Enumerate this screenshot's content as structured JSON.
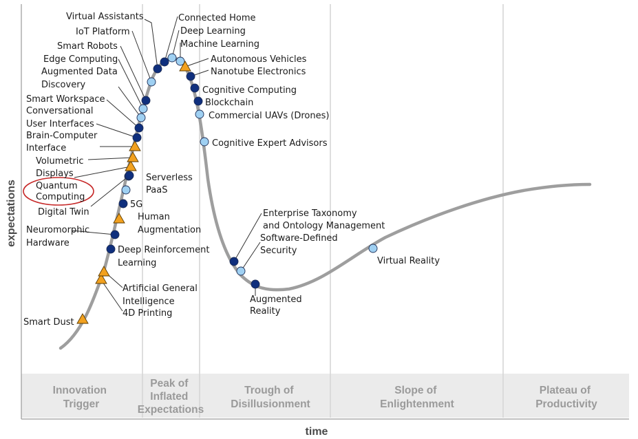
{
  "chart_data": {
    "type": "hype-cycle",
    "xlabel": "time",
    "ylabel": "expectations",
    "legend": "none",
    "grid": false,
    "colors": {
      "curve": "#9e9e9e",
      "phase_band": "#ebebeb",
      "phase_text": "#9a9a9a",
      "divider": "#d4d4d4",
      "dot_dark": "#0f2f7d",
      "dot_light": "#9fd0f2",
      "triangle": "#f2a11f",
      "highlight_ellipse": "#c62828"
    },
    "phases": [
      {
        "lines": [
          "Innovation",
          "Trigger"
        ]
      },
      {
        "lines": [
          "Peak of",
          "Inflated",
          "Expectations"
        ]
      },
      {
        "lines": [
          "Trough of",
          "Disillusionment"
        ]
      },
      {
        "lines": [
          "Slope of",
          "Enlightenment"
        ]
      },
      {
        "lines": [
          "Plateau of",
          "Productivity"
        ]
      }
    ],
    "technologies": [
      {
        "lines": [
          "Smart Dust"
        ],
        "symbol": "triangle",
        "highlighted": false
      },
      {
        "lines": [
          "4D Printing"
        ],
        "symbol": "triangle",
        "highlighted": false
      },
      {
        "lines": [
          "Artificial General",
          "Intelligence"
        ],
        "symbol": "triangle",
        "highlighted": false
      },
      {
        "lines": [
          "Deep Reinforcement",
          "Learning"
        ],
        "symbol": "dark",
        "highlighted": false
      },
      {
        "lines": [
          "Neuromorphic",
          "Hardware"
        ],
        "symbol": "dark",
        "highlighted": false
      },
      {
        "lines": [
          "Human",
          "Augmentation"
        ],
        "symbol": "triangle",
        "highlighted": false
      },
      {
        "lines": [
          "5G"
        ],
        "symbol": "dark",
        "highlighted": false
      },
      {
        "lines": [
          "Digital Twin"
        ],
        "symbol": "dark",
        "highlighted": false
      },
      {
        "lines": [
          "PaaS"
        ],
        "symbol": "light",
        "highlighted": false
      },
      {
        "lines": [
          "Serverless"
        ],
        "symbol": "dark",
        "highlighted": false
      },
      {
        "lines": [
          "Quantum",
          "Computing"
        ],
        "symbol": "triangle",
        "highlighted": true
      },
      {
        "lines": [
          "Volumetric",
          "Displays"
        ],
        "symbol": "triangle",
        "highlighted": false
      },
      {
        "lines": [
          "Brain-Computer",
          "Interface"
        ],
        "symbol": "triangle",
        "highlighted": false
      },
      {
        "lines": [
          "Conversational",
          "User Interfaces"
        ],
        "symbol": "dark",
        "highlighted": false
      },
      {
        "lines": [
          "Smart Workspace"
        ],
        "symbol": "dark",
        "highlighted": false
      },
      {
        "lines": [
          "Augmented Data",
          "Discovery"
        ],
        "symbol": "light",
        "highlighted": false
      },
      {
        "lines": [
          "Edge Computing"
        ],
        "symbol": "light",
        "highlighted": false
      },
      {
        "lines": [
          "Smart Robots"
        ],
        "symbol": "dark",
        "highlighted": false
      },
      {
        "lines": [
          "IoT Platform"
        ],
        "symbol": "light",
        "highlighted": false
      },
      {
        "lines": [
          "Virtual Assistants"
        ],
        "symbol": "dark",
        "highlighted": false
      },
      {
        "lines": [
          "Connected Home"
        ],
        "symbol": "dark",
        "highlighted": false
      },
      {
        "lines": [
          "Deep Learning"
        ],
        "symbol": "light",
        "highlighted": false
      },
      {
        "lines": [
          "Machine Learning"
        ],
        "symbol": "light",
        "highlighted": false
      },
      {
        "lines": [
          "Autonomous Vehicles"
        ],
        "symbol": "triangle",
        "highlighted": false
      },
      {
        "lines": [
          "Nanotube Electronics"
        ],
        "symbol": "dark",
        "highlighted": false
      },
      {
        "lines": [
          "Cognitive Computing"
        ],
        "symbol": "dark",
        "highlighted": false
      },
      {
        "lines": [
          "Blockchain"
        ],
        "symbol": "dark",
        "highlighted": false
      },
      {
        "lines": [
          "Commercial UAVs (Drones)"
        ],
        "symbol": "light",
        "highlighted": false
      },
      {
        "lines": [
          "Cognitive Expert Advisors"
        ],
        "symbol": "light",
        "highlighted": false
      },
      {
        "lines": [
          "Enterprise Taxonomy",
          "and Ontology Management"
        ],
        "symbol": "dark",
        "highlighted": false
      },
      {
        "lines": [
          "Software-Defined",
          "Security"
        ],
        "symbol": "light",
        "highlighted": false
      },
      {
        "lines": [
          "Augmented",
          "Reality"
        ],
        "symbol": "dark",
        "highlighted": false
      },
      {
        "lines": [
          "Virtual Reality"
        ],
        "symbol": "light",
        "highlighted": false
      }
    ]
  }
}
